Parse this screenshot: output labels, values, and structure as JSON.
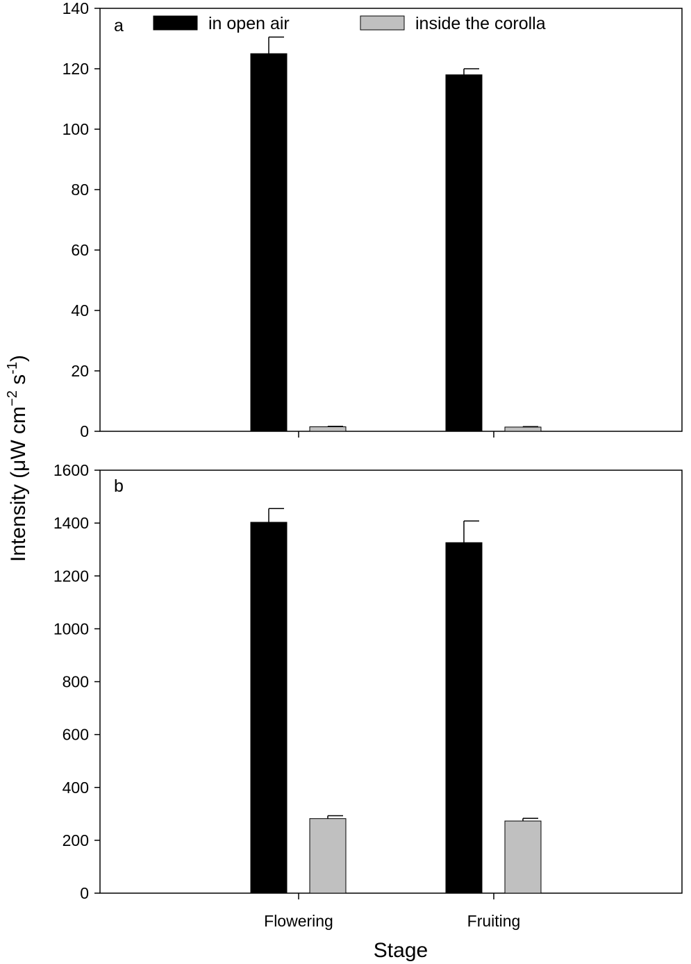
{
  "colors": {
    "in_open_air": "#000000",
    "inside_the_corolla": "#c0c0c0",
    "axes": "#000000",
    "background": "#ffffff"
  },
  "legend": {
    "placement": "top",
    "items": [
      {
        "label": "in open air",
        "color_key": "in_open_air"
      },
      {
        "label": "inside the corolla",
        "color_key": "inside_the_corolla"
      }
    ]
  },
  "ylabel": {
    "main": "Intensity (μW cm",
    "exp1": "−2",
    "mid": " s",
    "exp2": "-1",
    "close": ")"
  },
  "xlabel": "Stage",
  "chart_data": [
    {
      "panel": "a",
      "type": "bar",
      "categories": [
        "Flowering",
        "Fruiting"
      ],
      "ylim": [
        0,
        140
      ],
      "yticks": [
        0,
        20,
        40,
        60,
        80,
        100,
        120,
        140
      ],
      "grid": false,
      "series": [
        {
          "name": "in open air",
          "values": [
            125,
            118
          ],
          "errors": [
            5.5,
            2
          ]
        },
        {
          "name": "inside the corolla",
          "values": [
            1.5,
            1.4
          ],
          "errors": [
            0.15,
            0.15
          ]
        }
      ]
    },
    {
      "panel": "b",
      "type": "bar",
      "categories": [
        "Flowering",
        "Fruiting"
      ],
      "ylim": [
        0,
        1600
      ],
      "yticks": [
        0,
        200,
        400,
        600,
        800,
        1000,
        1200,
        1400,
        1600
      ],
      "grid": false,
      "series": [
        {
          "name": "in open air",
          "values": [
            1403,
            1326
          ],
          "errors": [
            52,
            82
          ]
        },
        {
          "name": "inside the corolla",
          "values": [
            282,
            273
          ],
          "errors": [
            11,
            10
          ]
        }
      ]
    }
  ]
}
